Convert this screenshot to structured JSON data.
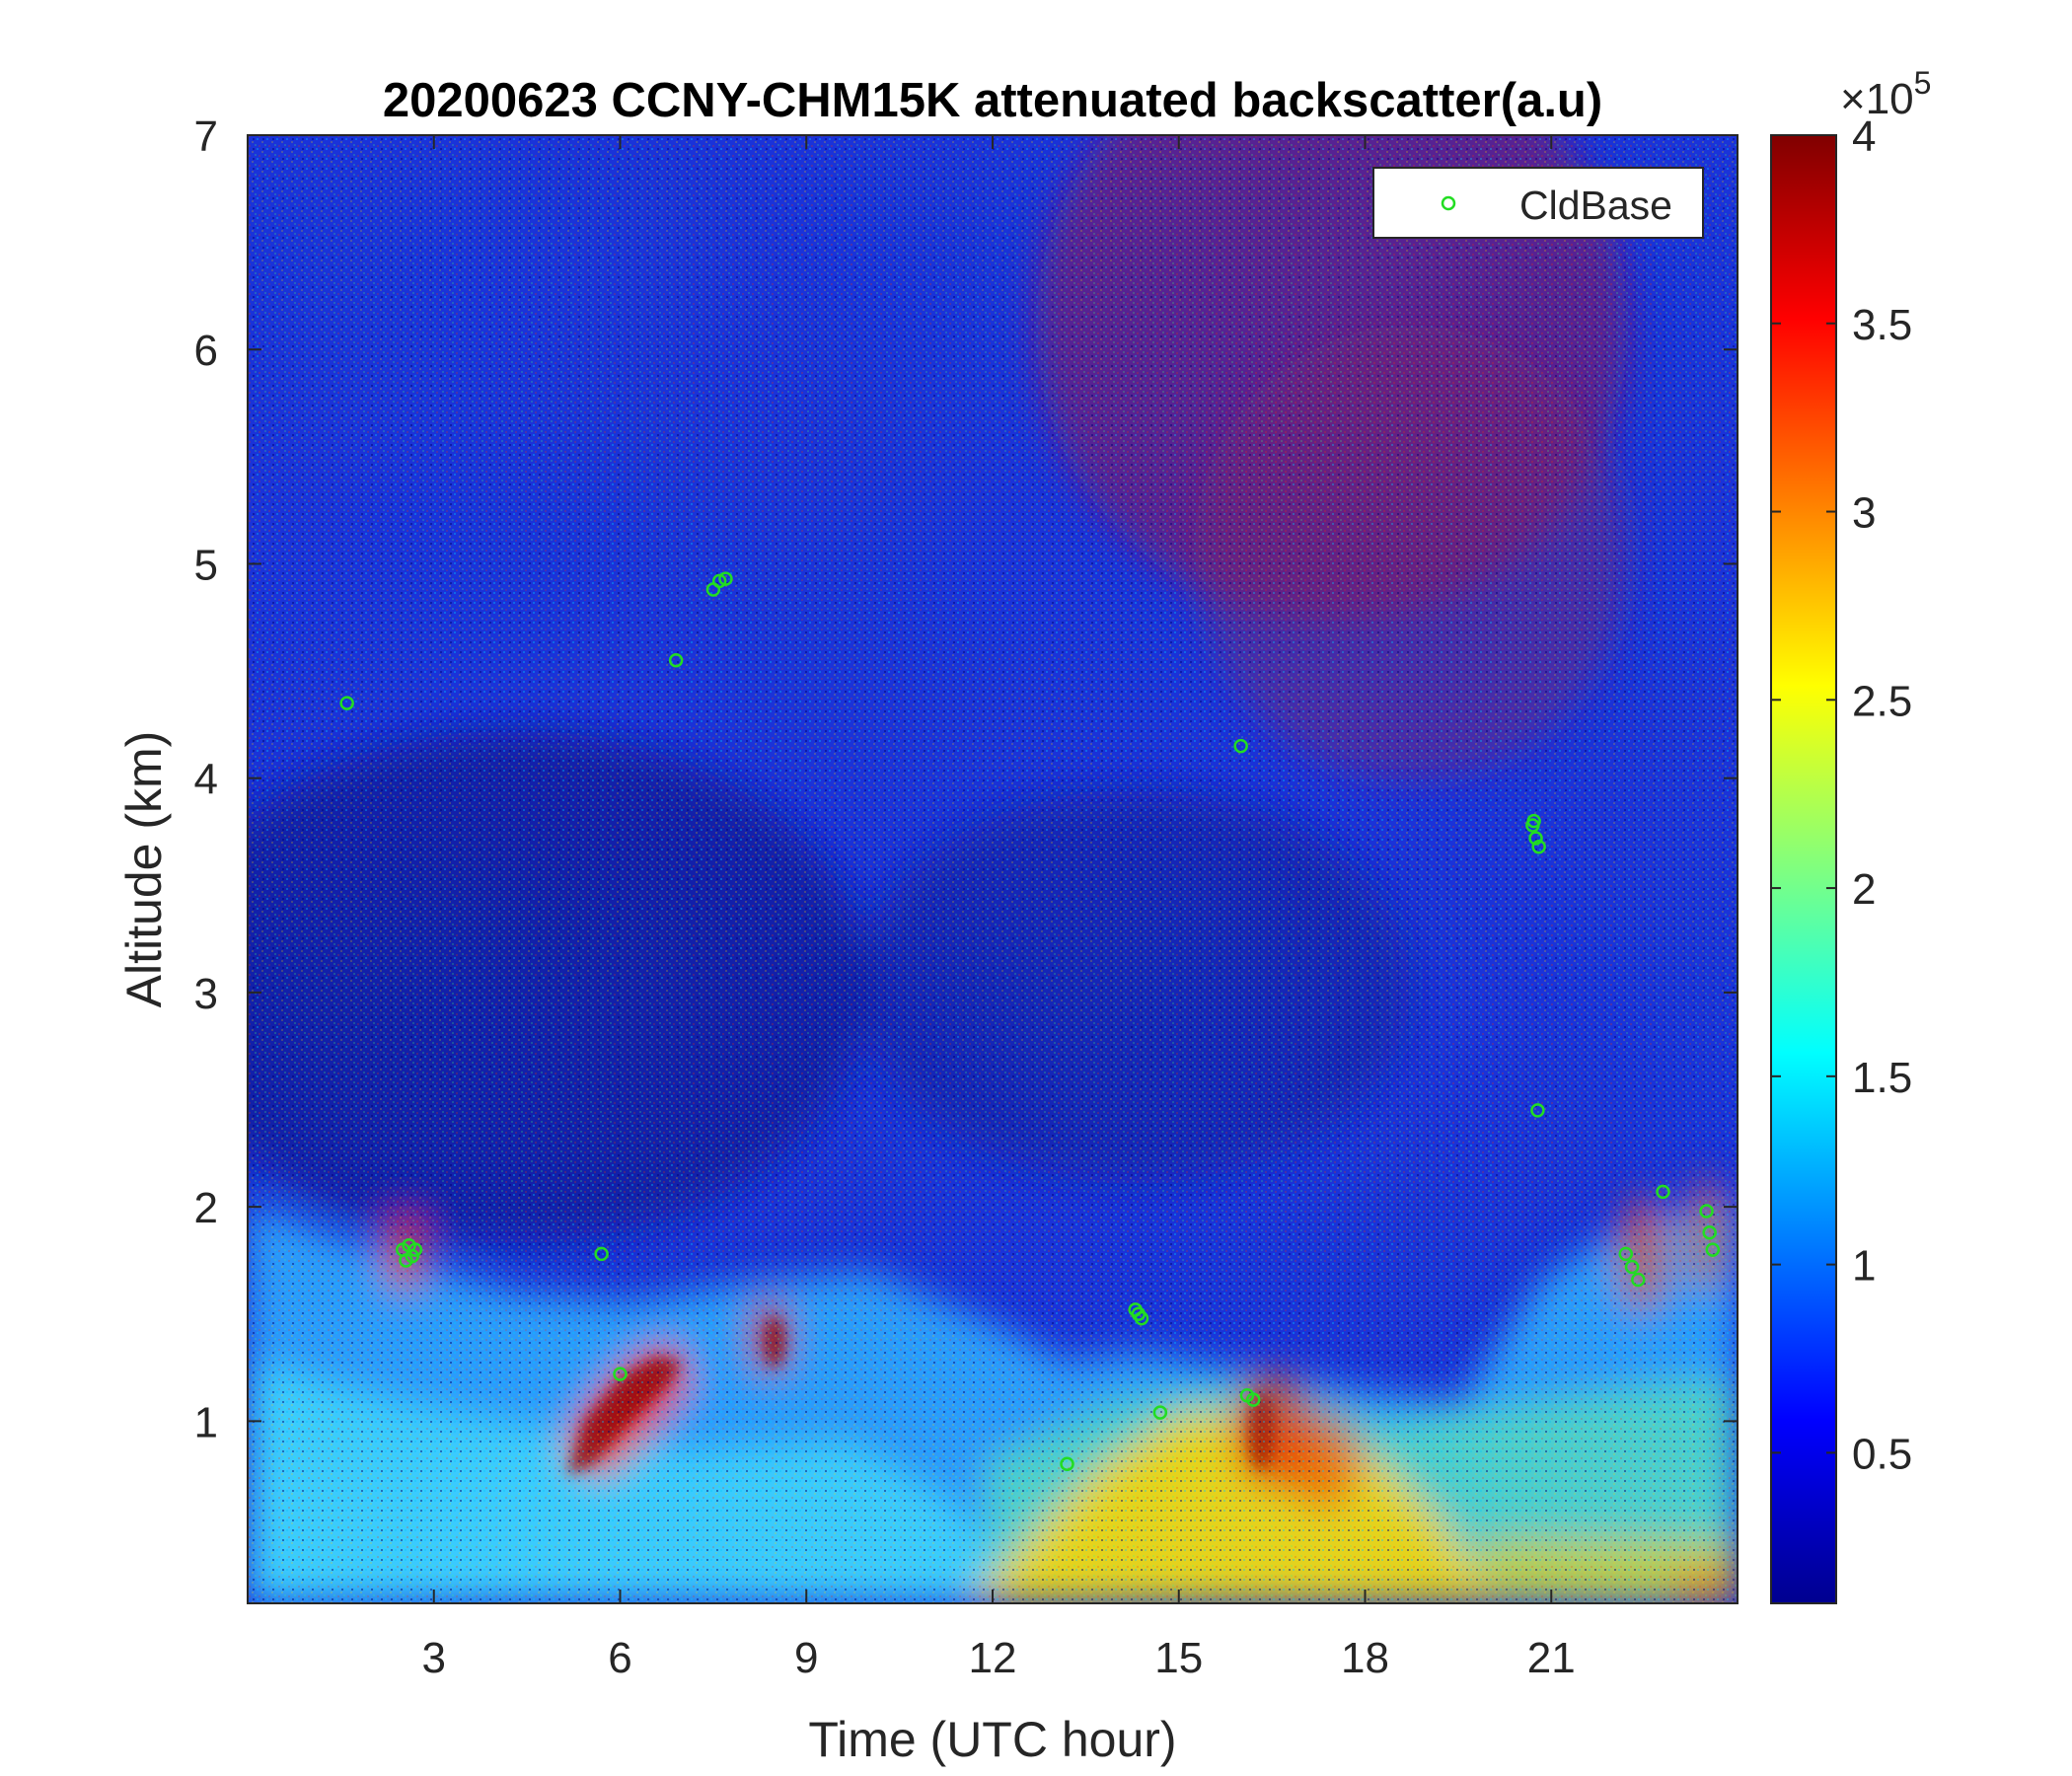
{
  "chart_data": {
    "type": "heatmap",
    "title": "20200623 CCNY-CHM15K attenuated backscatter(a.u)",
    "xlabel": "Time (UTC hour)",
    "ylabel": "Altitude (km)",
    "xlim": [
      0,
      24
    ],
    "ylim": [
      0.15,
      7
    ],
    "x_ticks": [
      3,
      6,
      9,
      12,
      15,
      18,
      21
    ],
    "x_tick_labels": [
      "3",
      "6",
      "9",
      "12",
      "15",
      "18",
      "21"
    ],
    "y_ticks": [
      1,
      2,
      3,
      4,
      5,
      6,
      7
    ],
    "y_tick_labels": [
      "1",
      "2",
      "3",
      "4",
      "5",
      "6",
      "7"
    ],
    "colormap": "jet",
    "colorbar": {
      "range": [
        0.1,
        4
      ],
      "ticks": [
        0.5,
        1,
        1.5,
        2,
        2.5,
        3,
        3.5,
        4
      ],
      "tick_labels": [
        "0.5",
        "1",
        "1.5",
        "2",
        "2.5",
        "3",
        "3.5",
        "4"
      ],
      "multiplier_base": "×10",
      "multiplier_exponent": "5"
    },
    "legend": {
      "location": "top-right",
      "entries": [
        "CldBase"
      ]
    },
    "series": [
      {
        "name": "CldBase",
        "kind": "scatter",
        "marker": "circle-open",
        "color": "#22dd22",
        "x": [
          1.6,
          2.5,
          2.6,
          2.7,
          2.55,
          2.65,
          5.7,
          6.0,
          6.9,
          7.5,
          7.6,
          7.7,
          13.2,
          14.3,
          14.35,
          14.4,
          14.7,
          16.0,
          16.1,
          16.2,
          20.7,
          20.75,
          20.8,
          20.72,
          20.78,
          22.2,
          22.3,
          22.4,
          22.8,
          23.5,
          23.55,
          23.6
        ],
        "y": [
          4.35,
          1.8,
          1.82,
          1.8,
          1.75,
          1.77,
          1.78,
          1.22,
          4.55,
          4.88,
          4.92,
          4.93,
          0.8,
          1.52,
          1.5,
          1.48,
          1.04,
          4.15,
          1.12,
          1.1,
          3.78,
          3.72,
          3.68,
          3.8,
          2.45,
          1.78,
          1.72,
          1.66,
          2.07,
          1.98,
          1.88,
          1.8
        ]
      }
    ]
  }
}
